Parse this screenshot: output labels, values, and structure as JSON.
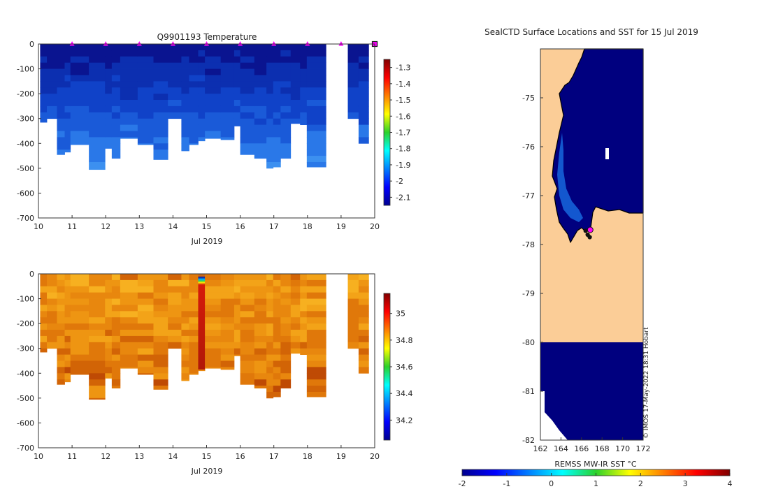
{
  "colors": {
    "temp_ramp": [
      "#0a1490",
      "#0c2fb0",
      "#1042c8",
      "#1a5ad8",
      "#2a78e8",
      "#3c90f0"
    ],
    "sal_ramp": [
      "#f7b020",
      "#f3a318",
      "#ee9512",
      "#e8870e",
      "#e0780a",
      "#d26406",
      "#bf4a04",
      "#a82a02"
    ],
    "land": "#fbcd97",
    "sea": "#00007f",
    "marker": "#ff00ff"
  },
  "chart_data": [
    {
      "id": "temperature",
      "type": "heatmap",
      "title": "Q9901193  Temperature",
      "xlabel": "Jul 2019",
      "xlim": [
        10,
        20
      ],
      "ylim": [
        -700,
        0
      ],
      "xticks": [
        "10",
        "11",
        "12",
        "13",
        "14",
        "15",
        "16",
        "17",
        "18",
        "19",
        "20"
      ],
      "yticks": [
        "0",
        "-100",
        "-200",
        "-300",
        "-400",
        "-500",
        "-600",
        "-700"
      ],
      "colorbar": {
        "range": [
          -2.15,
          -1.25
        ],
        "ticks": [
          "-1.3",
          "-1.4",
          "-1.5",
          "-1.6",
          "-1.7",
          "-1.8",
          "-1.9",
          "-2",
          "-2.1"
        ]
      },
      "profiles": [
        {
          "t0": 10.05,
          "t1": 10.25,
          "depth": 315
        },
        {
          "t0": 10.25,
          "t1": 10.55,
          "depth": 300
        },
        {
          "t0": 10.55,
          "t1": 10.78,
          "depth": 445
        },
        {
          "t0": 10.78,
          "t1": 10.95,
          "depth": 435
        },
        {
          "t0": 10.95,
          "t1": 11.5,
          "depth": 405
        },
        {
          "t0": 11.5,
          "t1": 11.98,
          "depth": 505
        },
        {
          "t0": 11.98,
          "t1": 12.18,
          "depth": 420
        },
        {
          "t0": 12.18,
          "t1": 12.43,
          "depth": 460
        },
        {
          "t0": 12.43,
          "t1": 12.95,
          "depth": 380
        },
        {
          "t0": 12.95,
          "t1": 13.42,
          "depth": 405
        },
        {
          "t0": 13.42,
          "t1": 13.85,
          "depth": 465
        },
        {
          "t0": 13.85,
          "t1": 14.25,
          "depth": 300
        },
        {
          "t0": 14.25,
          "t1": 14.48,
          "depth": 430
        },
        {
          "t0": 14.48,
          "t1": 14.75,
          "depth": 405
        },
        {
          "t0": 14.75,
          "t1": 14.95,
          "depth": 390
        },
        {
          "t0": 14.95,
          "t1": 15.42,
          "depth": 380
        },
        {
          "t0": 15.42,
          "t1": 15.82,
          "depth": 385
        },
        {
          "t0": 15.82,
          "t1": 16.0,
          "depth": 330
        },
        {
          "t0": 16.0,
          "t1": 16.42,
          "depth": 445
        },
        {
          "t0": 16.42,
          "t1": 16.78,
          "depth": 460
        },
        {
          "t0": 16.78,
          "t1": 16.98,
          "depth": 500
        },
        {
          "t0": 16.98,
          "t1": 17.2,
          "depth": 495
        },
        {
          "t0": 17.2,
          "t1": 17.5,
          "depth": 460
        },
        {
          "t0": 17.5,
          "t1": 17.78,
          "depth": 320
        },
        {
          "t0": 17.78,
          "t1": 17.98,
          "depth": 325
        },
        {
          "t0": 17.98,
          "t1": 18.55,
          "depth": 495
        },
        {
          "t0": 19.2,
          "t1": 19.52,
          "depth": 300
        },
        {
          "t0": 19.52,
          "t1": 19.82,
          "depth": 400
        }
      ],
      "markers": [
        11,
        12,
        13,
        14,
        15,
        16,
        17,
        18,
        19,
        20
      ]
    },
    {
      "id": "salinity",
      "type": "heatmap",
      "title": "",
      "xlabel": "Jul 2019",
      "xlim": [
        10,
        20
      ],
      "ylim": [
        -700,
        0
      ],
      "xticks": [
        "10",
        "11",
        "12",
        "13",
        "14",
        "15",
        "16",
        "17",
        "18",
        "19",
        "20"
      ],
      "yticks": [
        "0",
        "-100",
        "-200",
        "-300",
        "-400",
        "-500",
        "-600",
        "-700"
      ],
      "colorbar": {
        "range": [
          34.05,
          35.15
        ],
        "ticks": [
          "35",
          "34.8",
          "34.6",
          "34.4",
          "34.2"
        ]
      },
      "anomaly_profile": {
        "t0": 14.75,
        "t1": 14.95,
        "depth": 385
      }
    },
    {
      "id": "map",
      "type": "heatmap",
      "title": "SealCTD Surface Locations and SST for 15 Jul 2019",
      "xlabel": "REMSS MW-IR SST °C",
      "xlim": [
        162,
        172
      ],
      "ylim": [
        -82,
        -74
      ],
      "xticks": [
        "162",
        "164",
        "166",
        "168",
        "170",
        "172"
      ],
      "yticks": [
        "-75",
        "-76",
        "-77",
        "-78",
        "-79",
        "-80",
        "-81",
        "-82"
      ],
      "colorbar": {
        "range": [
          -2,
          4
        ],
        "ticks": [
          "-2",
          "-1",
          "0",
          "1",
          "2",
          "3",
          "4"
        ]
      },
      "stations": [
        {
          "lon": 166.4,
          "lat": -77.72
        },
        {
          "lon": 166.6,
          "lat": -77.8
        },
        {
          "lon": 166.8,
          "lat": -77.85
        },
        {
          "lon": 166.85,
          "lat": -77.7
        }
      ],
      "watermark": "© IMOS 17-May-2022 18:31 Hobart"
    }
  ]
}
